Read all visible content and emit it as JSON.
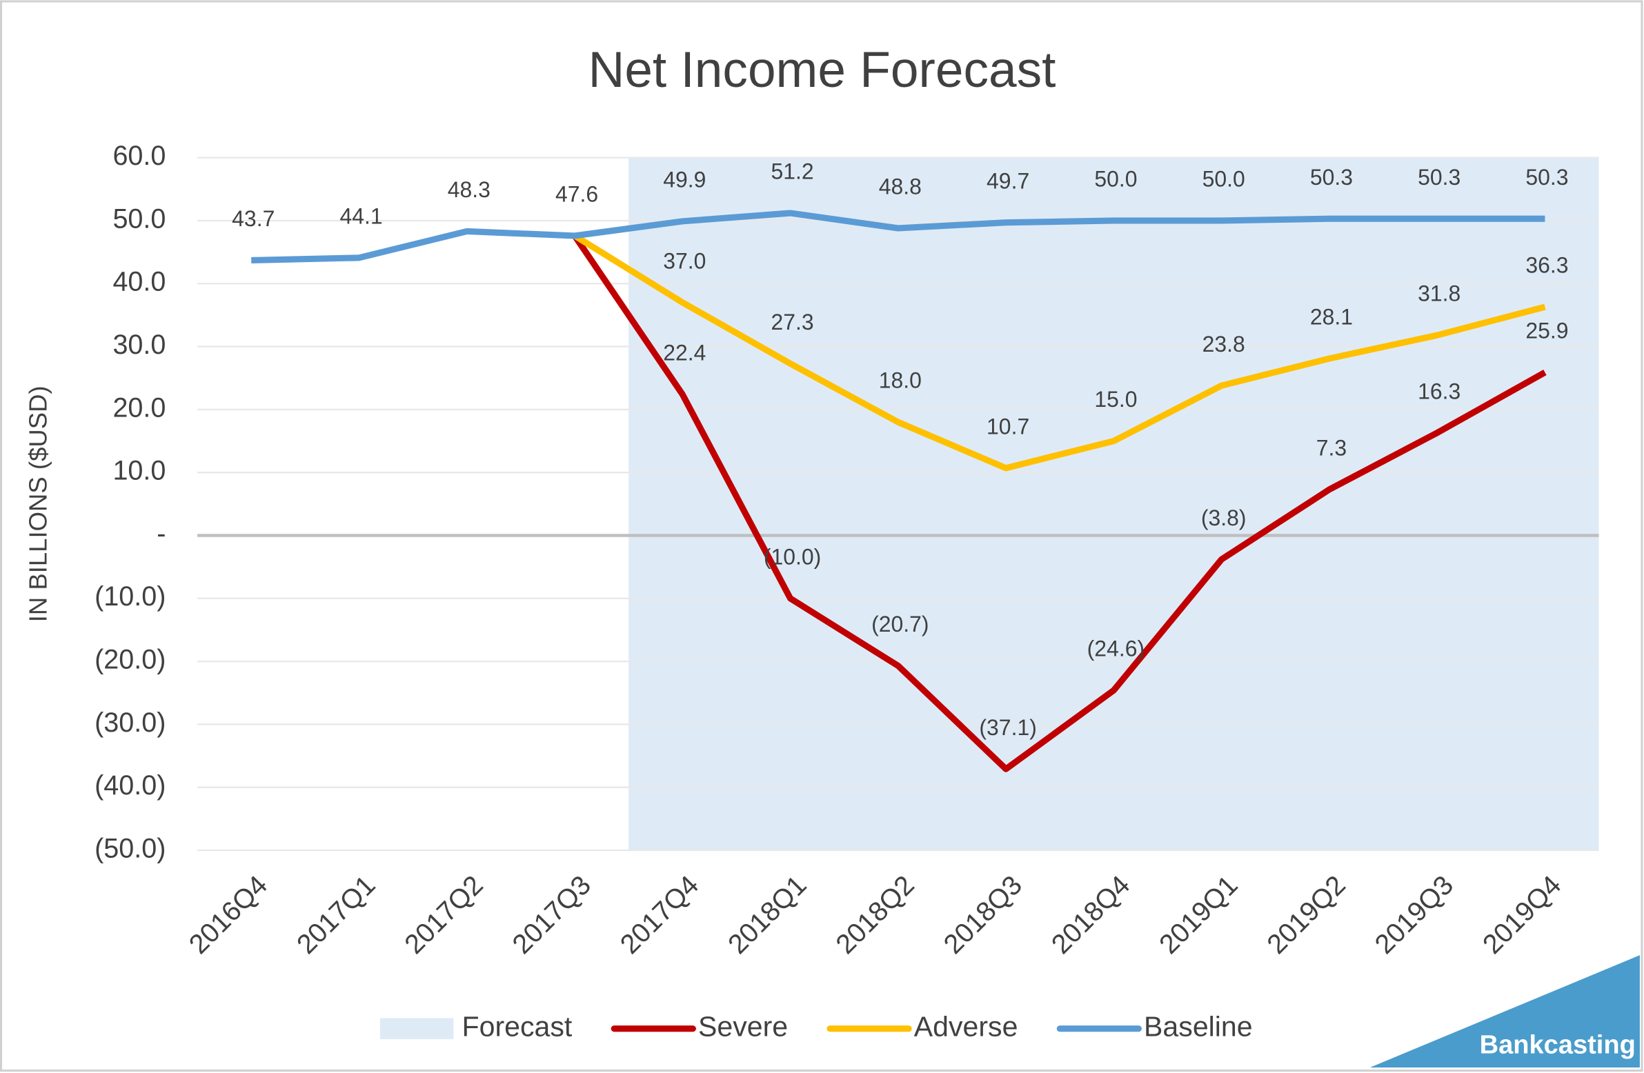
{
  "chart_data": {
    "type": "line",
    "title": "Net Income Forecast",
    "y_axis_label": "IN BILLIONS ($USD)",
    "categories": [
      "2016Q4",
      "2017Q1",
      "2017Q2",
      "2017Q3",
      "2017Q4",
      "2018Q1",
      "2018Q2",
      "2018Q3",
      "2018Q4",
      "2019Q1",
      "2019Q2",
      "2019Q3",
      "2019Q4"
    ],
    "shading": {
      "name": "Forecast",
      "color": "#deebf7"
    },
    "series": [
      {
        "name": "Severe",
        "color": "#c00000",
        "values": [
          null,
          null,
          null,
          47.6,
          22.4,
          -10.0,
          -20.7,
          -37.1,
          -24.6,
          -3.8,
          7.3,
          16.3,
          25.9
        ],
        "value_labels": [
          null,
          null,
          null,
          null,
          "22.4",
          "(10.0)",
          "(20.7)",
          "(37.1)",
          "(24.6)",
          "(3.8)",
          "7.3",
          "16.3",
          "25.9"
        ]
      },
      {
        "name": "Adverse",
        "color": "#ffc000",
        "values": [
          null,
          null,
          null,
          47.6,
          37.0,
          27.3,
          18.0,
          10.7,
          15.0,
          23.8,
          28.1,
          31.8,
          36.3
        ],
        "value_labels": [
          null,
          null,
          null,
          null,
          "37.0",
          "27.3",
          "18.0",
          "10.7",
          "15.0",
          "23.8",
          "28.1",
          "31.8",
          "36.3"
        ]
      },
      {
        "name": "Baseline",
        "color": "#5b9bd5",
        "values": [
          43.7,
          44.1,
          48.3,
          47.6,
          49.9,
          51.2,
          48.8,
          49.7,
          50.0,
          50.0,
          50.3,
          50.3,
          50.3
        ],
        "value_labels": [
          "43.7",
          "44.1",
          "48.3",
          "47.6",
          "49.9",
          "51.2",
          "48.8",
          "49.7",
          "50.0",
          "50.0",
          "50.3",
          "50.3",
          "50.3"
        ]
      }
    ],
    "ylim": [
      -50,
      60
    ],
    "yticks": [
      {
        "value": 60,
        "label": "60.0"
      },
      {
        "value": 50,
        "label": "50.0"
      },
      {
        "value": 40,
        "label": "40.0"
      },
      {
        "value": 30,
        "label": "30.0"
      },
      {
        "value": 20,
        "label": "20.0"
      },
      {
        "value": 10,
        "label": "10.0"
      },
      {
        "value": 0,
        "label": "-"
      },
      {
        "value": -10,
        "label": "(10.0)"
      },
      {
        "value": -20,
        "label": "(20.0)"
      },
      {
        "value": -30,
        "label": "(30.0)"
      },
      {
        "value": -40,
        "label": "(40.0)"
      },
      {
        "value": -50,
        "label": "(50.0)"
      }
    ],
    "grid": true,
    "legend": "bottom",
    "watermark": "Bankcasting"
  }
}
